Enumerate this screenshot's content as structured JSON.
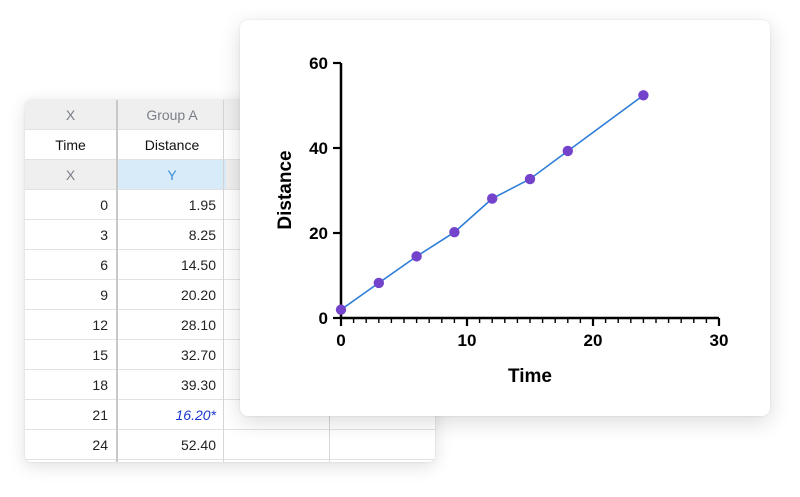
{
  "table": {
    "header": {
      "x": "X",
      "group": "Group A"
    },
    "titles": {
      "x": "Time",
      "y": "Distance"
    },
    "subheader": {
      "x": "X",
      "y": "Y"
    },
    "rows": [
      {
        "x": "0",
        "y": "1.95"
      },
      {
        "x": "3",
        "y": "8.25"
      },
      {
        "x": "6",
        "y": "14.50"
      },
      {
        "x": "9",
        "y": "20.20"
      },
      {
        "x": "12",
        "y": "28.10"
      },
      {
        "x": "15",
        "y": "32.70"
      },
      {
        "x": "18",
        "y": "39.30"
      },
      {
        "x": "21",
        "y": "16.20*",
        "excluded": true
      },
      {
        "x": "24",
        "y": "52.40"
      }
    ]
  },
  "chart_data": {
    "type": "line",
    "xlabel": "Time",
    "ylabel": "Distance",
    "xlim": [
      0,
      30
    ],
    "ylim": [
      0,
      60
    ],
    "x_ticks": [
      0,
      10,
      20,
      30
    ],
    "y_ticks": [
      0,
      20,
      40,
      60
    ],
    "x": [
      0,
      3,
      6,
      9,
      12,
      15,
      18,
      24
    ],
    "series": [
      {
        "values": [
          1.95,
          8.25,
          14.5,
          20.2,
          28.1,
          32.7,
          39.3,
          52.4
        ]
      }
    ],
    "colors": {
      "point": "#7343cc",
      "line": "#2f7fd8"
    },
    "grid": false,
    "legend": "none"
  }
}
